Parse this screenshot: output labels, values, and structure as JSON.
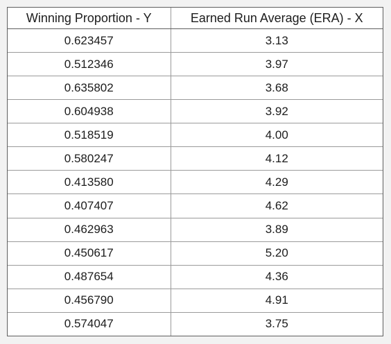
{
  "table": {
    "headers": [
      "Winning Proportion - Y",
      "Earned Run Average (ERA) - X"
    ],
    "rows": [
      [
        "0.623457",
        "3.13"
      ],
      [
        "0.512346",
        "3.97"
      ],
      [
        "0.635802",
        "3.68"
      ],
      [
        "0.604938",
        "3.92"
      ],
      [
        "0.518519",
        "4.00"
      ],
      [
        "0.580247",
        "4.12"
      ],
      [
        "0.413580",
        "4.29"
      ],
      [
        "0.407407",
        "4.62"
      ],
      [
        "0.462963",
        "3.89"
      ],
      [
        "0.450617",
        "5.20"
      ],
      [
        "0.487654",
        "4.36"
      ],
      [
        "0.456790",
        "4.91"
      ],
      [
        "0.574047",
        "3.75"
      ]
    ]
  }
}
